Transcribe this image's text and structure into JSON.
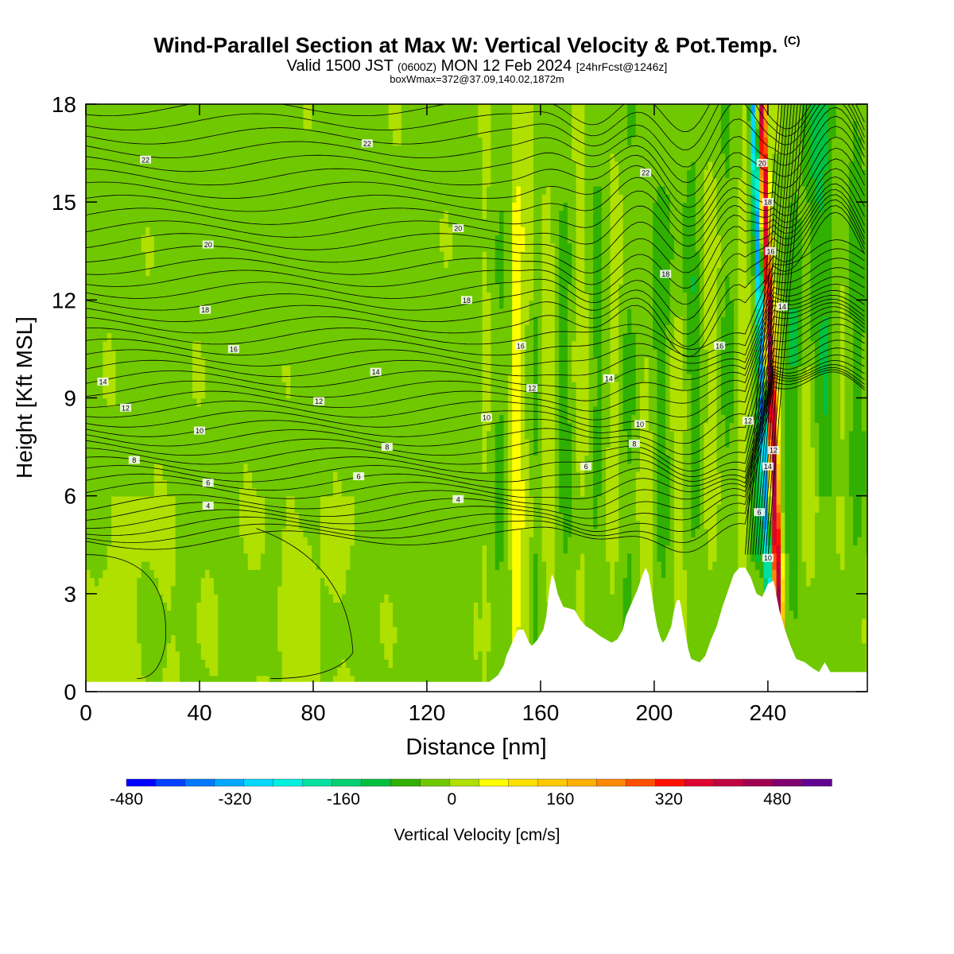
{
  "title": {
    "main": "Wind-Parallel Section at Max W: Vertical Velocity & Pot.Temp.",
    "copyright": "(C)",
    "valid_prefix": "Valid 1500 JST",
    "valid_z": "(0600Z)",
    "valid_date": "MON 12 Feb 2024",
    "forecast": "[24hrFcst@1246z]",
    "boxinfo": "boxWmax=372@37.09,140.02,1872m"
  },
  "chart_data": {
    "type": "heatmap",
    "xlabel": "Distance [nm]",
    "ylabel": "Height [Kft MSL]",
    "xlim": [
      0,
      275
    ],
    "ylim": [
      0,
      18
    ],
    "x_ticks": [
      "0",
      "40",
      "80",
      "120",
      "160",
      "200",
      "240"
    ],
    "y_ticks": [
      "0",
      "3",
      "6",
      "9",
      "12",
      "15",
      "18"
    ],
    "colorbar": {
      "label": "Vertical Velocity [cm/s]",
      "range": [
        -480,
        560
      ],
      "tick_labels": [
        "-480",
        "-320",
        "-160",
        "0",
        "160",
        "320",
        "480"
      ],
      "tick_values": [
        -480,
        -320,
        -160,
        0,
        160,
        320,
        480
      ],
      "colors": [
        "#0000ff",
        "#0040ff",
        "#0078ff",
        "#00a8ff",
        "#00d8ff",
        "#00f0e0",
        "#00e0a0",
        "#00d070",
        "#00c040",
        "#30b000",
        "#70c800",
        "#b0e000",
        "#ffff00",
        "#ffe000",
        "#ffc800",
        "#ffb000",
        "#ff8800",
        "#ff5000",
        "#ff1000",
        "#e00030",
        "#c00040",
        "#a00050",
        "#800070",
        "#600090"
      ]
    },
    "theta_labels": [
      {
        "text": "22",
        "x": 21,
        "y": 16.3
      },
      {
        "text": "22",
        "x": 99,
        "y": 16.8
      },
      {
        "text": "22",
        "x": 197,
        "y": 15.9
      },
      {
        "text": "20",
        "x": 43,
        "y": 13.7
      },
      {
        "text": "20",
        "x": 131,
        "y": 14.2
      },
      {
        "text": "20",
        "x": 238,
        "y": 16.2
      },
      {
        "text": "18",
        "x": 42,
        "y": 11.7
      },
      {
        "text": "18",
        "x": 134,
        "y": 12.0
      },
      {
        "text": "18",
        "x": 204,
        "y": 12.8
      },
      {
        "text": "18",
        "x": 240,
        "y": 15.0
      },
      {
        "text": "16",
        "x": 52,
        "y": 10.5
      },
      {
        "text": "16",
        "x": 153,
        "y": 10.6
      },
      {
        "text": "16",
        "x": 223,
        "y": 10.6
      },
      {
        "text": "16",
        "x": 241,
        "y": 13.5
      },
      {
        "text": "14",
        "x": 6,
        "y": 9.5
      },
      {
        "text": "14",
        "x": 102,
        "y": 9.8
      },
      {
        "text": "14",
        "x": 184,
        "y": 9.6
      },
      {
        "text": "14",
        "x": 245,
        "y": 11.8
      },
      {
        "text": "14",
        "x": 240,
        "y": 6.9
      },
      {
        "text": "12",
        "x": 14,
        "y": 8.7
      },
      {
        "text": "12",
        "x": 82,
        "y": 8.9
      },
      {
        "text": "12",
        "x": 157,
        "y": 9.3
      },
      {
        "text": "12",
        "x": 233,
        "y": 8.3
      },
      {
        "text": "12",
        "x": 242,
        "y": 7.4
      },
      {
        "text": "10",
        "x": 40,
        "y": 8.0
      },
      {
        "text": "10",
        "x": 141,
        "y": 8.4
      },
      {
        "text": "10",
        "x": 195,
        "y": 8.2
      },
      {
        "text": "10",
        "x": 240,
        "y": 4.1
      },
      {
        "text": "8",
        "x": 17,
        "y": 7.1
      },
      {
        "text": "8",
        "x": 106,
        "y": 7.5
      },
      {
        "text": "8",
        "x": 193,
        "y": 7.6
      },
      {
        "text": "6",
        "x": 43,
        "y": 6.4
      },
      {
        "text": "6",
        "x": 96,
        "y": 6.6
      },
      {
        "text": "6",
        "x": 176,
        "y": 6.9
      },
      {
        "text": "6",
        "x": 237,
        "y": 5.5
      },
      {
        "text": "4",
        "x": 43,
        "y": 5.7
      },
      {
        "text": "4",
        "x": 131,
        "y": 5.9
      }
    ],
    "terrain": [
      [
        0,
        0.3
      ],
      [
        142,
        0.3
      ],
      [
        145,
        0.5
      ],
      [
        147,
        0.8
      ],
      [
        148,
        1.1
      ],
      [
        150,
        1.5
      ],
      [
        152,
        1.9
      ],
      [
        154,
        1.9
      ],
      [
        156,
        1.5
      ],
      [
        157,
        1.4
      ],
      [
        159,
        1.6
      ],
      [
        161,
        1.9
      ],
      [
        162,
        2.3
      ],
      [
        163,
        3.1
      ],
      [
        164,
        3.6
      ],
      [
        165,
        3.4
      ],
      [
        166,
        3.0
      ],
      [
        168,
        2.6
      ],
      [
        172,
        2.5
      ],
      [
        174,
        2.2
      ],
      [
        176,
        2.0
      ],
      [
        178,
        1.9
      ],
      [
        181,
        1.7
      ],
      [
        185,
        1.5
      ],
      [
        187,
        1.6
      ],
      [
        189,
        1.9
      ],
      [
        190,
        2.3
      ],
      [
        192,
        2.7
      ],
      [
        194,
        3.1
      ],
      [
        196,
        3.6
      ],
      [
        197,
        3.8
      ],
      [
        198,
        3.6
      ],
      [
        199,
        3.1
      ],
      [
        200,
        2.5
      ],
      [
        201,
        2.0
      ],
      [
        202,
        1.7
      ],
      [
        203,
        1.5
      ],
      [
        204,
        1.6
      ],
      [
        206,
        2.0
      ],
      [
        207,
        2.5
      ],
      [
        208,
        2.8
      ],
      [
        209,
        2.8
      ],
      [
        210,
        2.3
      ],
      [
        211,
        1.8
      ],
      [
        212,
        1.3
      ],
      [
        213,
        1.0
      ],
      [
        216,
        0.9
      ],
      [
        218,
        1.1
      ],
      [
        220,
        1.6
      ],
      [
        222,
        2.0
      ],
      [
        224,
        2.6
      ],
      [
        226,
        3.1
      ],
      [
        228,
        3.6
      ],
      [
        230,
        3.8
      ],
      [
        232,
        3.8
      ],
      [
        234,
        3.5
      ],
      [
        236,
        3.0
      ],
      [
        238,
        2.9
      ],
      [
        240,
        3.3
      ],
      [
        242,
        3.4
      ],
      [
        244,
        2.5
      ],
      [
        246,
        1.9
      ],
      [
        248,
        1.4
      ],
      [
        250,
        1.0
      ],
      [
        253,
        0.9
      ],
      [
        256,
        0.7
      ],
      [
        258,
        0.6
      ],
      [
        260,
        0.9
      ],
      [
        262,
        0.6
      ],
      [
        275,
        0.6
      ]
    ]
  }
}
